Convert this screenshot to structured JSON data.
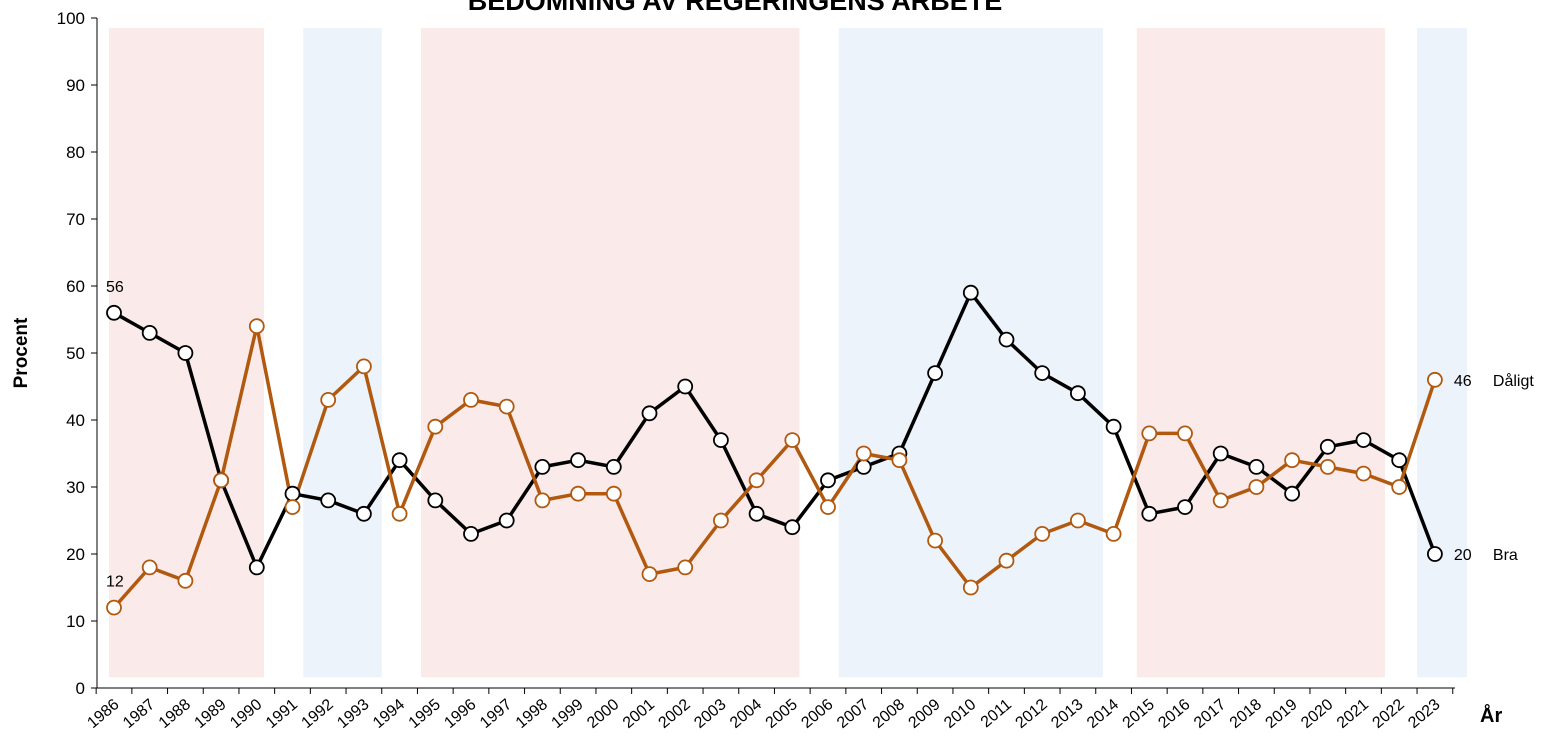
{
  "chart_data": {
    "type": "line",
    "title": "BEDÖMNING AV REGERINGENS ARBETE",
    "y_label": "Procent",
    "x_label": "År",
    "categories": [
      "1986",
      "1987",
      "1988",
      "1989",
      "1990",
      "1991",
      "1992",
      "1993",
      "1994",
      "1995",
      "1996",
      "1997",
      "1998",
      "1999",
      "2000",
      "2001",
      "2002",
      "2003",
      "2004",
      "2005",
      "2006",
      "2007",
      "2008",
      "2009",
      "2010",
      "2011",
      "2012",
      "2013",
      "2014",
      "2015",
      "2016",
      "2017",
      "2018",
      "2019",
      "2020",
      "2021",
      "2022",
      "2023"
    ],
    "series": [
      {
        "name": "Bra",
        "color": "#000000",
        "values": [
          56,
          53,
          50,
          31,
          18,
          29,
          28,
          26,
          34,
          28,
          23,
          25,
          33,
          34,
          33,
          41,
          45,
          37,
          26,
          24,
          31,
          33,
          35,
          47,
          59,
          52,
          47,
          44,
          39,
          26,
          27,
          35,
          33,
          29,
          36,
          37,
          34,
          20
        ]
      },
      {
        "name": "Dåligt",
        "color": "#b0590f",
        "values": [
          12,
          18,
          16,
          31,
          54,
          27,
          43,
          48,
          26,
          39,
          43,
          42,
          28,
          29,
          29,
          17,
          18,
          25,
          31,
          37,
          27,
          35,
          34,
          22,
          15,
          19,
          23,
          25,
          23,
          38,
          38,
          28,
          30,
          34,
          33,
          32,
          30,
          46
        ]
      }
    ],
    "shaded_periods": [
      {
        "start": 1985.86,
        "end": 1990.2,
        "color": "#fbeaea"
      },
      {
        "start": 1991.3,
        "end": 1993.5,
        "color": "#edf3fb"
      },
      {
        "start": 1994.6,
        "end": 2005.2,
        "color": "#fbeaea"
      },
      {
        "start": 2006.3,
        "end": 2013.7,
        "color": "#edf3fb"
      },
      {
        "start": 2014.65,
        "end": 2021.6,
        "color": "#fbeaea"
      },
      {
        "start": 2022.5,
        "end": 2023.9,
        "color": "#edf3fb"
      }
    ],
    "ylim": [
      0,
      100
    ],
    "yticks": [
      0,
      10,
      20,
      30,
      40,
      50,
      60,
      70,
      80,
      90,
      100
    ]
  }
}
